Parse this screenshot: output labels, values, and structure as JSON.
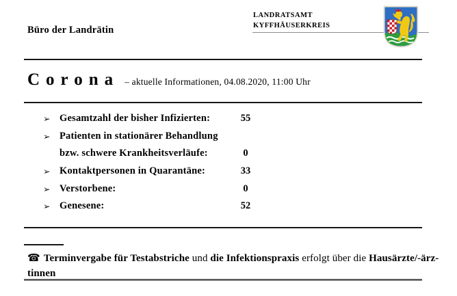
{
  "header": {
    "office": "Büro der Landrätin",
    "authority": {
      "line1": "LANDRATSAMT",
      "line2": "KYFFHÄUSERKREIS"
    },
    "coat_of_arms": {
      "name": "kyffhaeuserkreis-wappen",
      "field_color": "#2e6fc3",
      "lion_color": "#f3c814",
      "mound_color": "#2f9e3f",
      "wave_color": "#ffffff",
      "check_color": "#c8222a",
      "border_color": "#e7e0cd"
    }
  },
  "title": {
    "word": "Corona",
    "subtitle": "– aktuelle Informationen, 04.08.2020, 11:00 Uhr"
  },
  "stats": {
    "bullet_glyph": "➢",
    "rows": [
      {
        "bullet": true,
        "label": "Gesamtzahl der bisher Infizierten:",
        "value": "55"
      },
      {
        "bullet": true,
        "label": "Patienten in stationärer Behandlung",
        "value": ""
      },
      {
        "bullet": false,
        "label": "bzw. schwere Krankheitsverläufe:",
        "value": "0"
      },
      {
        "bullet": true,
        "label": "Kontaktpersonen in Quarantäne:",
        "value": "33"
      },
      {
        "bullet": true,
        "label": "Verstorbene:",
        "value": "0"
      },
      {
        "bullet": true,
        "label": "Genesene:",
        "value": "52"
      }
    ]
  },
  "footer": {
    "phone_icon": "☎",
    "line1_segments": [
      {
        "text": "Terminvergabe für Testabstriche",
        "bold": true
      },
      {
        "text": " und ",
        "bold": false
      },
      {
        "text": "die Infektionspraxis",
        "bold": true
      },
      {
        "text": " erfolgt über die ",
        "bold": false
      },
      {
        "text": "Hausärzte/-ärz-",
        "bold": true
      }
    ],
    "line2": "tinnen"
  }
}
